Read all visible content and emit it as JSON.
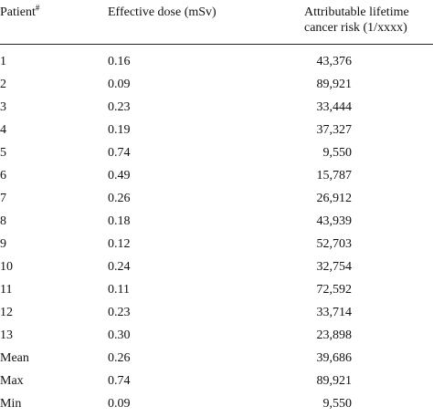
{
  "table": {
    "headers": {
      "patient": "Patient",
      "patient_mark": "#",
      "dose": "Effective dose (mSv)",
      "risk_line1": "Attributable lifetime",
      "risk_line2": "cancer risk (1/xxxx)"
    },
    "rows": [
      {
        "patient": "1",
        "dose": "0.16",
        "risk": "43,376"
      },
      {
        "patient": "2",
        "dose": "0.09",
        "risk": "89,921"
      },
      {
        "patient": "3",
        "dose": "0.23",
        "risk": "33,444"
      },
      {
        "patient": "4",
        "dose": "0.19",
        "risk": "37,327"
      },
      {
        "patient": "5",
        "dose": "0.74",
        "risk": "9,550"
      },
      {
        "patient": "6",
        "dose": "0.49",
        "risk": "15,787"
      },
      {
        "patient": "7",
        "dose": "0.26",
        "risk": "26,912"
      },
      {
        "patient": "8",
        "dose": "0.18",
        "risk": "43,939"
      },
      {
        "patient": "9",
        "dose": "0.12",
        "risk": "52,703"
      },
      {
        "patient": "10",
        "dose": "0.24",
        "risk": "32,754"
      },
      {
        "patient": "11",
        "dose": "0.11",
        "risk": "72,592"
      },
      {
        "patient": "12",
        "dose": "0.23",
        "risk": "33,714"
      },
      {
        "patient": "13",
        "dose": "0.30",
        "risk": "23,898"
      },
      {
        "patient": "Mean",
        "dose": "0.26",
        "risk": "39,686"
      },
      {
        "patient": "Max",
        "dose": "0.74",
        "risk": "89,921"
      },
      {
        "patient": "Min",
        "dose": "0.09",
        "risk": "9,550"
      }
    ]
  }
}
